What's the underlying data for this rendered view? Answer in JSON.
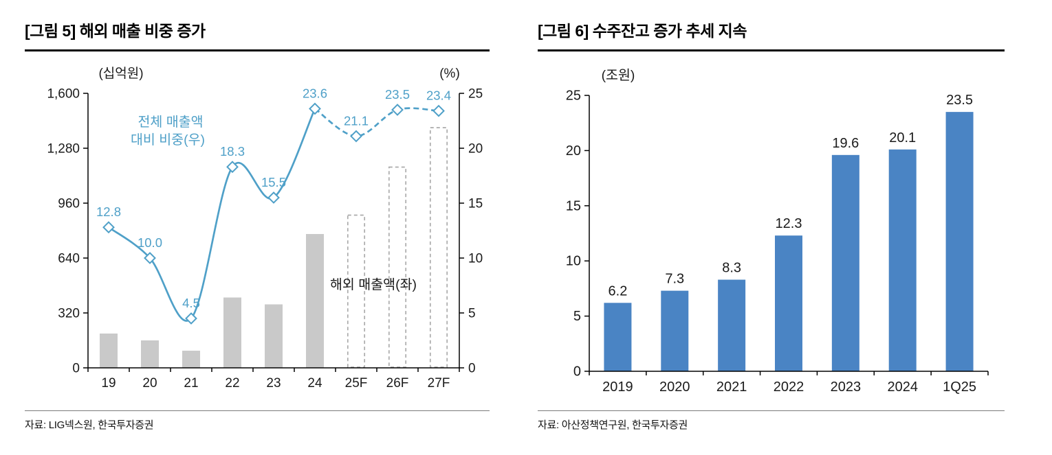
{
  "figures": [
    {
      "title": "[그림 5] 해외 매출 비중 증가",
      "source": "자료: LIG넥스원,  한국투자증권"
    },
    {
      "title": "[그림 6] 수주잔고 증가 추세 지속",
      "source": "자료: 아산정책연구원,  한국투자증권"
    }
  ],
  "colors": {
    "line_blue": "#4fa0c8",
    "bar_gray": "#c9c9c9",
    "bar_gray_dash": "#ababab",
    "bar_blue": "#4a84c4",
    "axis": "#000000",
    "text": "#1a1a1a"
  },
  "chart_data": [
    {
      "type": "combo-bar-line",
      "title": "[그림 5] 해외 매출 비중 증가",
      "categories": [
        "19",
        "20",
        "21",
        "22",
        "23",
        "24",
        "25F",
        "26F",
        "27F"
      ],
      "left_axis": {
        "unit_label": "(십억원)",
        "tick_labels": [
          "0",
          "320",
          "640",
          "960",
          "1,280",
          "1,600"
        ],
        "min": 0,
        "max": 1600
      },
      "right_axis": {
        "unit_label": "(%)",
        "ticks": [
          0,
          5,
          10,
          15,
          20,
          25
        ],
        "min": 0,
        "max": 25
      },
      "series": [
        {
          "name": "해외 매출액(좌)",
          "type": "bar",
          "axis": "left",
          "values_estimated": true,
          "values": [
            200,
            160,
            100,
            410,
            370,
            780,
            890,
            1170,
            1400
          ],
          "forecast_from_index": 6
        },
        {
          "name": "전체 매출액 대비 비중(우)",
          "type": "line",
          "axis": "right",
          "values": [
            12.8,
            10.0,
            4.5,
            18.3,
            15.5,
            23.6,
            21.1,
            23.5,
            23.4
          ],
          "solid_until_index": 5,
          "data_labels": [
            "12.8",
            "10.0",
            "4.5",
            "18.3",
            "15.5",
            "23.6",
            "21.1",
            "23.5",
            "23.4"
          ]
        }
      ],
      "annotations": [
        {
          "text": "전체 매출액\n대비 비중(우)",
          "series": "line",
          "color": "blue"
        },
        {
          "text": "해외 매출액(좌)",
          "series": "bar",
          "color": "black"
        }
      ],
      "legend_position": "annotations-in-plot",
      "grid": false
    },
    {
      "type": "bar",
      "title": "[그림 6] 수주잔고 증가 추세 지속",
      "unit_label": "(조원)",
      "categories": [
        "2019",
        "2020",
        "2021",
        "2022",
        "2023",
        "2024",
        "1Q25"
      ],
      "values": [
        6.2,
        7.3,
        8.3,
        12.3,
        19.6,
        20.1,
        23.5
      ],
      "data_labels": [
        "6.2",
        "7.3",
        "8.3",
        "12.3",
        "19.6",
        "20.1",
        "23.5"
      ],
      "ylim": [
        0,
        25
      ],
      "yticks": [
        0,
        5,
        10,
        15,
        20,
        25
      ],
      "grid": false,
      "legend_position": "none"
    }
  ]
}
